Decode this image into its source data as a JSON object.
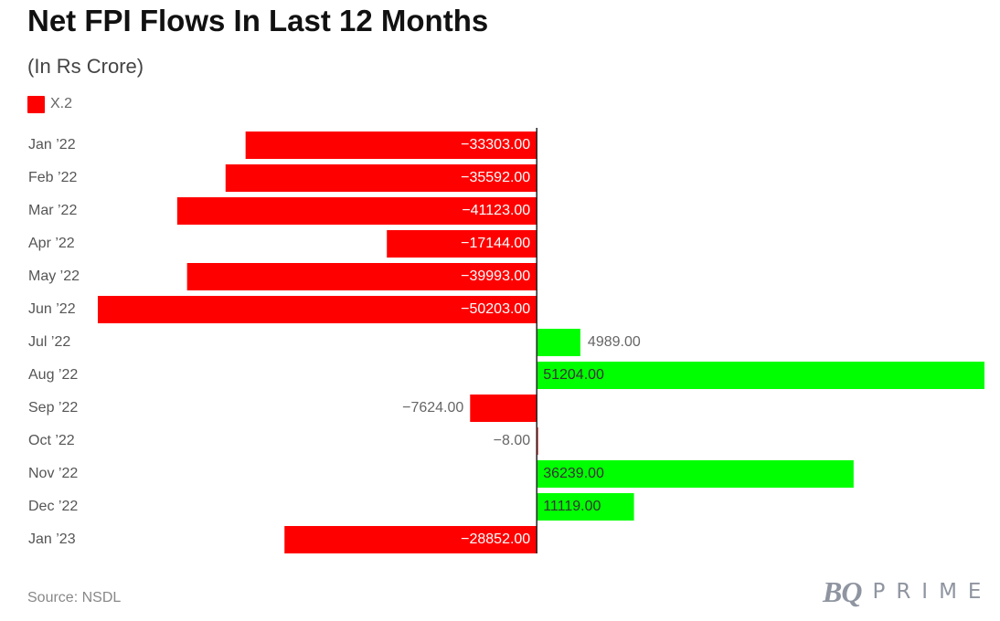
{
  "header": {
    "title": "Net FPI Flows In Last 12 Months",
    "subtitle": "(In Rs Crore)"
  },
  "legend": {
    "label": "X.2",
    "color": "#ff0000"
  },
  "colors": {
    "negative": "#ff0000",
    "positive": "#00ff00",
    "axis": "#222222",
    "label_inside": "#ffffff",
    "label_inside_positive": "#333333",
    "label_outside": "#666666",
    "category_text": "#555555"
  },
  "chart_data": {
    "type": "bar",
    "orientation": "horizontal",
    "categories": [
      "Jan ’22",
      "Feb ’22",
      "Mar ’22",
      "Apr ’22",
      "May ’22",
      "Jun ’22",
      "Jul ’22",
      "Aug ’22",
      "Sep ’22",
      "Oct ’22",
      "Nov ’22",
      "Dec ’22",
      "Jan ’23"
    ],
    "series": [
      {
        "name": "X.2",
        "values": [
          -33303.0,
          -35592.0,
          -41123.0,
          -17144.0,
          -39993.0,
          -50203.0,
          4989.0,
          51204.0,
          -7624.0,
          -8.0,
          36239.0,
          11119.0,
          -28852.0
        ]
      }
    ],
    "data_labels": [
      "−33303.00",
      "−35592.00",
      "−41123.00",
      "−17144.00",
      "−39993.00",
      "−50203.00",
      "4989.00",
      "51204.00",
      "−7624.00",
      "−8.00",
      "36239.00",
      "11119.00",
      "−28852.00"
    ],
    "xlim": [
      -50203,
      51204
    ],
    "grid": false,
    "legend_position": "top-left"
  },
  "footer": {
    "source": "Source: NSDL",
    "brand_mark": "BQ",
    "brand_word": "PRIME"
  }
}
